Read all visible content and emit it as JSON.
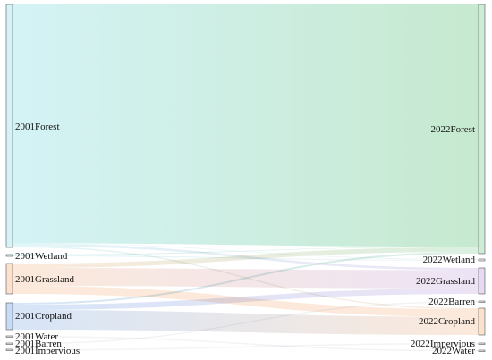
{
  "chart_data": {
    "type": "sankey",
    "source_year": "2001",
    "target_year": "2022",
    "nodes": {
      "left": [
        {
          "id": "L_forest",
          "label": "2001Forest",
          "color": "#d6f3f6"
        },
        {
          "id": "L_wetland",
          "label": "2001Wetland",
          "color": "#d3eef3"
        },
        {
          "id": "L_grassland",
          "label": "2001Grassland",
          "color": "#fbe2cf"
        },
        {
          "id": "L_cropland",
          "label": "2001Cropland",
          "color": "#c9dcf5"
        },
        {
          "id": "L_water",
          "label": "2001Water",
          "color": "#eef0f3"
        },
        {
          "id": "L_barren",
          "label": "2001Barren",
          "color": "#eef0f3"
        },
        {
          "id": "L_impervious",
          "label": "2001Impervious",
          "color": "#eef0f3"
        }
      ],
      "right": [
        {
          "id": "R_forest",
          "label": "2022Forest",
          "color": "#cdebd7"
        },
        {
          "id": "R_wetland",
          "label": "2022Wetland",
          "color": "#eef0f3"
        },
        {
          "id": "R_grassland",
          "label": "2022Grassland",
          "color": "#e6daf2"
        },
        {
          "id": "R_barren",
          "label": "2022Barren",
          "color": "#eef0f3"
        },
        {
          "id": "R_cropland",
          "label": "2022Cropland",
          "color": "#fbe2cf"
        },
        {
          "id": "R_impervious",
          "label": "2022Impervious",
          "color": "#eef0f3"
        },
        {
          "id": "R_water",
          "label": "2022Water",
          "color": "#eef0f3"
        }
      ]
    },
    "links": [
      {
        "source": "L_forest",
        "target": "R_forest",
        "value": 262
      },
      {
        "source": "L_forest",
        "target": "R_grassland",
        "value": 2.5
      },
      {
        "source": "L_forest",
        "target": "R_cropland",
        "value": 1.5
      },
      {
        "source": "L_forest",
        "target": "R_wetland",
        "value": 0.5
      },
      {
        "source": "L_wetland",
        "target": "R_forest",
        "value": 0.5
      },
      {
        "source": "L_wetland",
        "target": "R_wetland",
        "value": 0.5
      },
      {
        "source": "L_grassland",
        "target": "R_forest",
        "value": 5
      },
      {
        "source": "L_grassland",
        "target": "R_grassland",
        "value": 20
      },
      {
        "source": "L_grassland",
        "target": "R_cropland",
        "value": 9
      },
      {
        "source": "L_cropland",
        "target": "R_forest",
        "value": 2
      },
      {
        "source": "L_cropland",
        "target": "R_grassland",
        "value": 6
      },
      {
        "source": "L_cropland",
        "target": "R_cropland",
        "value": 22
      },
      {
        "source": "L_water",
        "target": "R_water",
        "value": 0.4
      },
      {
        "source": "L_barren",
        "target": "R_barren",
        "value": 0.3
      },
      {
        "source": "L_impervious",
        "target": "R_impervious",
        "value": 0.4
      }
    ],
    "link_gradient": {
      "start": "#d4f3f6",
      "end": "#c6e9cf"
    }
  }
}
